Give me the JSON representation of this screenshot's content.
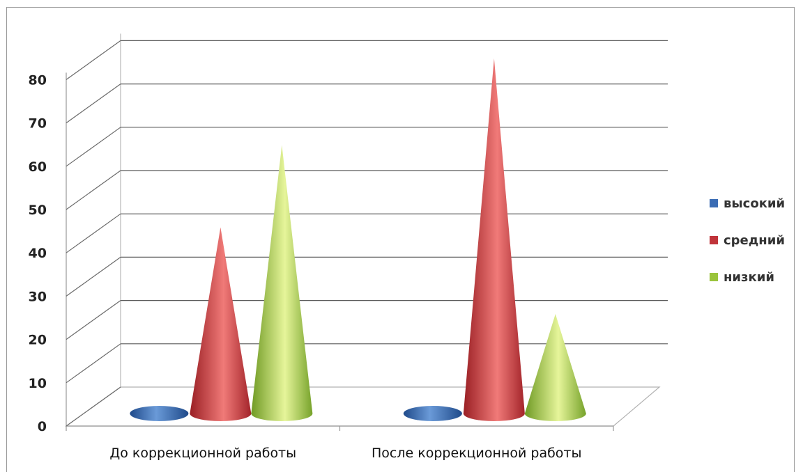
{
  "chart_data": {
    "type": "bar",
    "style": "3d-cone",
    "categories": [
      "До коррекционной работы",
      "После коррекционной работы"
    ],
    "series": [
      {
        "name": "высокий",
        "values": [
          0,
          0
        ],
        "color": "#3a6cb4"
      },
      {
        "name": "средний",
        "values": [
          43,
          82
        ],
        "color": "#c0343a"
      },
      {
        "name": "низкий",
        "values": [
          62,
          23
        ],
        "color": "#9ac43c"
      }
    ],
    "yticks": [
      "0",
      "10",
      "20",
      "30",
      "40",
      "50",
      "60",
      "70",
      "80"
    ],
    "ylim": [
      0,
      80
    ],
    "grid": true,
    "legend_position": "right"
  }
}
